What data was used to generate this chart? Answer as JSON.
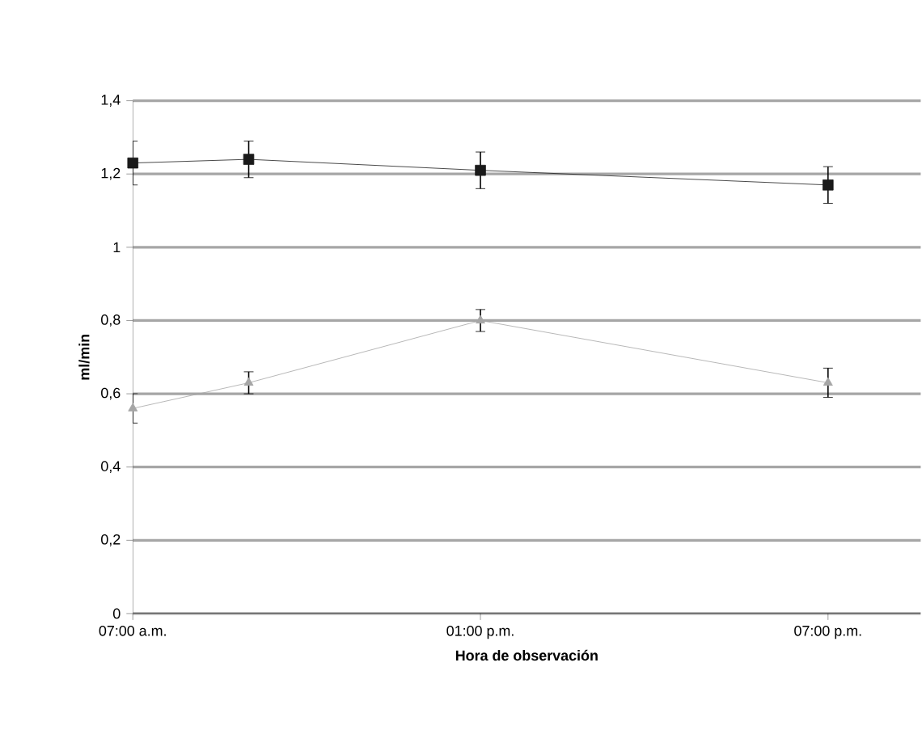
{
  "chart_data": {
    "type": "line",
    "xlabel": "Hora de observación",
    "ylabel": "ml/min",
    "x": [
      7,
      9,
      13,
      19
    ],
    "xlim": [
      7,
      20.6
    ],
    "xticks": [
      {
        "value": 7,
        "label": "07:00 a.m."
      },
      {
        "value": 13,
        "label": "01:00 p.m."
      },
      {
        "value": 19,
        "label": "07:00 p.m."
      }
    ],
    "ylim": [
      0,
      1.4
    ],
    "yticks": [
      0,
      {
        "value": 0.2,
        "label": "0,2"
      },
      {
        "value": 0.4,
        "label": "0,4"
      },
      {
        "value": 0.6,
        "label": "0,6"
      },
      {
        "value": 0.8,
        "label": "0,8"
      },
      1,
      {
        "value": 1.2,
        "label": "1,2"
      },
      {
        "value": 1.4,
        "label": "1,4"
      }
    ],
    "grid": "y",
    "line_style": "solid",
    "series": [
      {
        "color": "#1a1a1a",
        "marker": "square",
        "values": [
          1.23,
          1.24,
          1.21,
          1.17
        ],
        "errors": [
          0.06,
          0.05,
          0.05,
          0.05
        ]
      },
      {
        "color": "#a6a6a6",
        "marker": "triangle",
        "values": [
          0.56,
          0.63,
          0.8,
          0.63
        ],
        "errors": [
          0.04,
          0.03,
          0.03,
          0.04
        ]
      }
    ]
  }
}
